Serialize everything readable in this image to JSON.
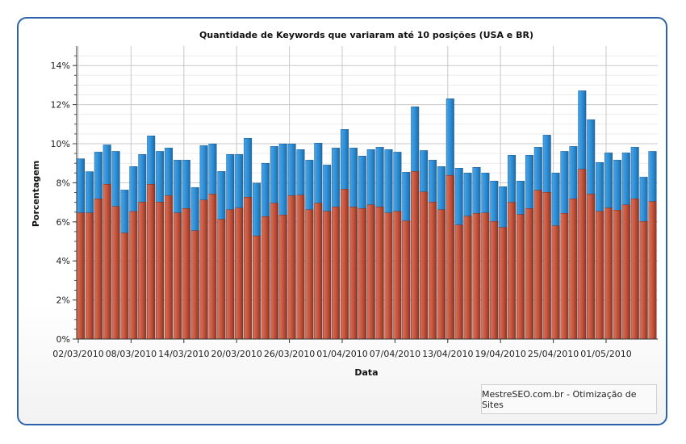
{
  "chart_data": {
    "type": "bar",
    "title": "Quantidade de Keywords que variaram até 10 posições (USA e BR)",
    "xlabel": "Data",
    "ylabel": "Porcentagem",
    "ylim": [
      0,
      15
    ],
    "yticks": [
      "0%",
      "2%",
      "4%",
      "6%",
      "8%",
      "10%",
      "12%",
      "14%"
    ],
    "xtick_labels": [
      "02/03/2010",
      "08/03/2010",
      "14/03/2010",
      "20/03/2010",
      "26/03/2010",
      "01/04/2010",
      "07/04/2010",
      "13/04/2010",
      "19/04/2010",
      "25/04/2010",
      "01/05/2010"
    ],
    "x_start": "02/03/2010",
    "x_end": "06/05/2010",
    "grid": true,
    "colors": {
      "blue": "#2e8fd6",
      "red": "#c5543c"
    },
    "series": [
      {
        "values": [
          9.23,
          8.57,
          9.57,
          9.94,
          9.61,
          7.63,
          8.83,
          9.45,
          10.4,
          9.61,
          9.78,
          9.16,
          9.16,
          7.76,
          9.9,
          9.99,
          8.58,
          9.45,
          9.45,
          10.28,
          7.98,
          9.0,
          9.86,
          9.99,
          9.99,
          9.7,
          9.16,
          10.03,
          8.91,
          9.78,
          10.73,
          9.78,
          9.37,
          9.7,
          9.82,
          9.7,
          9.57,
          8.54,
          11.89,
          9.65,
          9.16,
          8.83,
          12.3,
          8.75,
          8.5,
          8.79,
          8.5,
          8.09,
          7.8,
          9.41,
          8.09,
          9.41,
          9.82,
          10.44,
          8.5,
          9.61,
          9.86,
          12.71,
          11.23,
          9.04,
          9.53,
          9.16,
          9.53,
          9.82,
          8.29,
          9.61
        ]
      },
      {
        "values": [
          6.46,
          6.46,
          7.18,
          7.92,
          6.79,
          5.43,
          6.53,
          7.01,
          7.92,
          7.01,
          7.34,
          6.46,
          6.68,
          5.55,
          7.12,
          7.42,
          6.13,
          6.62,
          6.71,
          7.26,
          5.28,
          6.27,
          6.96,
          6.35,
          7.34,
          7.37,
          6.62,
          6.96,
          6.54,
          6.76,
          7.67,
          6.76,
          6.68,
          6.87,
          6.76,
          6.46,
          6.54,
          6.05,
          8.58,
          7.53,
          7.01,
          6.62,
          8.38,
          5.84,
          6.29,
          6.43,
          6.46,
          6.02,
          5.72,
          7.0,
          6.38,
          6.68,
          7.62,
          7.51,
          5.8,
          6.43,
          7.18,
          8.69,
          7.42,
          6.54,
          6.71,
          6.6,
          6.87,
          7.18,
          6.02,
          7.04
        ]
      }
    ]
  },
  "footer": {
    "text": "MestreSEO.com.br - Otimização de Sites"
  }
}
